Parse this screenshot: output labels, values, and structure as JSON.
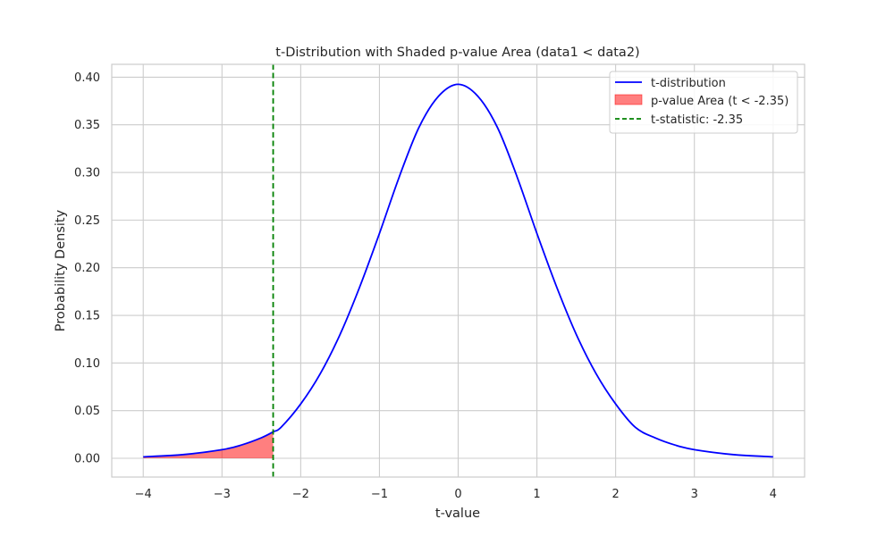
{
  "chart_data": {
    "type": "line",
    "title": "t-Distribution with Shaded p-value Area (data1 < data2)",
    "xlabel": "t-value",
    "ylabel": "Probability Density",
    "xlim": [
      -4.4,
      4.4
    ],
    "ylim": [
      -0.0197,
      0.4135
    ],
    "x_ticks": [
      -4,
      -3,
      -2,
      -1,
      0,
      1,
      2,
      3,
      4
    ],
    "x_tick_labels": [
      "−4",
      "−3",
      "−2",
      "−1",
      "0",
      "1",
      "2",
      "3",
      "4"
    ],
    "y_ticks": [
      0.0,
      0.05,
      0.1,
      0.15,
      0.2,
      0.25,
      0.3,
      0.35,
      0.4
    ],
    "y_tick_labels": [
      "0.00",
      "0.05",
      "0.10",
      "0.15",
      "0.20",
      "0.25",
      "0.30",
      "0.35",
      "0.40"
    ],
    "grid": true,
    "legend_position": "top-right",
    "series": [
      {
        "name": "t-distribution",
        "kind": "line",
        "color": "#0000ff",
        "x": [
          -4,
          -3.5,
          -3,
          -2.75,
          -2.5,
          -2.35,
          -2.25,
          -2,
          -1.75,
          -1.5,
          -1.25,
          -1,
          -0.75,
          -0.5,
          -0.25,
          0,
          0.25,
          0.5,
          0.75,
          1,
          1.25,
          1.5,
          1.75,
          2,
          2.25,
          2.5,
          2.75,
          3,
          3.5,
          4
        ],
        "y": [
          0.0015,
          0.0038,
          0.009,
          0.014,
          0.0215,
          0.0277,
          0.0325,
          0.057,
          0.089,
          0.13,
          0.18,
          0.236,
          0.295,
          0.347,
          0.38,
          0.3925,
          0.38,
          0.347,
          0.295,
          0.236,
          0.18,
          0.13,
          0.089,
          0.057,
          0.0325,
          0.0215,
          0.014,
          0.009,
          0.0038,
          0.0015
        ]
      },
      {
        "name": "p-value Area (t < -2.35)",
        "kind": "area",
        "color": "#ff0000",
        "opacity": 0.5,
        "x_max": -2.35
      },
      {
        "name": "t-statistic: -2.35",
        "kind": "vline",
        "color": "#008000",
        "x": -2.35
      }
    ]
  }
}
